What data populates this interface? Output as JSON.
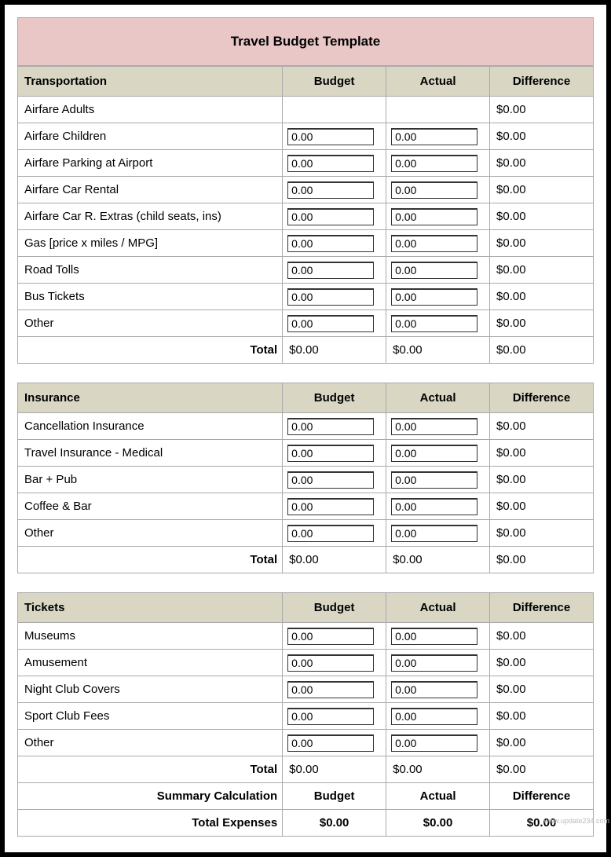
{
  "title": "Travel Budget Template",
  "columns": {
    "budget": "Budget",
    "actual": "Actual",
    "difference": "Difference"
  },
  "total_label": "Total",
  "summary": {
    "calc_label": "Summary Calculation",
    "total_expenses_label": "Total Expenses",
    "budget": "$0.00",
    "actual": "$0.00",
    "difference": "$0.00"
  },
  "sections": [
    {
      "heading": "Transportation",
      "rows": [
        {
          "label": "Airfare Adults",
          "budget": "",
          "actual": "",
          "difference": "$0.00",
          "no_input": true
        },
        {
          "label": "Airfare Children",
          "budget": "0.00",
          "actual": "0.00",
          "difference": "$0.00"
        },
        {
          "label": "Airfare Parking at Airport",
          "budget": "0.00",
          "actual": "0.00",
          "difference": "$0.00"
        },
        {
          "label": "Airfare Car Rental",
          "budget": "0.00",
          "actual": "0.00",
          "difference": "$0.00"
        },
        {
          "label": "Airfare Car R. Extras (child seats, ins)",
          "budget": "0.00",
          "actual": "0.00",
          "difference": "$0.00"
        },
        {
          "label": "Gas [price x miles / MPG]",
          "budget": "0.00",
          "actual": "0.00",
          "difference": "$0.00"
        },
        {
          "label": "Road Tolls",
          "budget": "0.00",
          "actual": "0.00",
          "difference": "$0.00"
        },
        {
          "label": "Bus Tickets",
          "budget": "0.00",
          "actual": "0.00",
          "difference": "$0.00"
        },
        {
          "label": "Other",
          "budget": "0.00",
          "actual": "0.00",
          "difference": "$0.00"
        }
      ],
      "total": {
        "budget": "$0.00",
        "actual": "$0.00",
        "difference": "$0.00"
      }
    },
    {
      "heading": "Insurance",
      "rows": [
        {
          "label": "Cancellation Insurance",
          "budget": "0.00",
          "actual": "0.00",
          "difference": "$0.00"
        },
        {
          "label": "Travel Insurance - Medical",
          "budget": "0.00",
          "actual": "0.00",
          "difference": "$0.00"
        },
        {
          "label": "Bar + Pub",
          "budget": "0.00",
          "actual": "0.00",
          "difference": "$0.00"
        },
        {
          "label": "Coffee & Bar",
          "budget": "0.00",
          "actual": "0.00",
          "difference": "$0.00"
        },
        {
          "label": "Other",
          "budget": "0.00",
          "actual": "0.00",
          "difference": "$0.00"
        }
      ],
      "total": {
        "budget": "$0.00",
        "actual": "$0.00",
        "difference": "$0.00"
      }
    },
    {
      "heading": "Tickets",
      "rows": [
        {
          "label": "Museums",
          "budget": "0.00",
          "actual": "0.00",
          "difference": "$0.00"
        },
        {
          "label": "Amusement",
          "budget": "0.00",
          "actual": "0.00",
          "difference": "$0.00"
        },
        {
          "label": "Night Club Covers",
          "budget": "0.00",
          "actual": "0.00",
          "difference": "$0.00"
        },
        {
          "label": "Sport Club Fees",
          "budget": "0.00",
          "actual": "0.00",
          "difference": "$0.00"
        },
        {
          "label": "Other",
          "budget": "0.00",
          "actual": "0.00",
          "difference": "$0.00"
        }
      ],
      "total": {
        "budget": "$0.00",
        "actual": "$0.00",
        "difference": "$0.00"
      }
    }
  ],
  "watermark": "www.update234.com",
  "styling": {
    "title_bg": "#eac7c7",
    "header_bg": "#d9d6c3",
    "border_color": "#aaaaaa",
    "frame_border": "#000000",
    "input_border": "#333333",
    "font_family": "Arial",
    "title_fontsize": 17,
    "cell_fontsize": 15,
    "column_widths_pct": [
      46,
      18,
      18,
      18
    ]
  }
}
